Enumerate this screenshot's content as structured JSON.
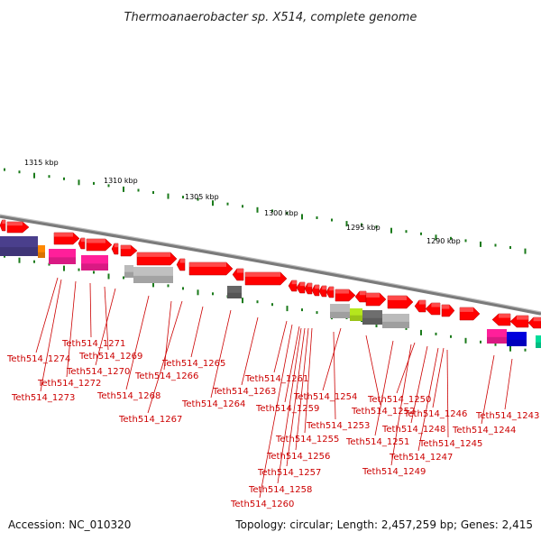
{
  "header": {
    "title": "Thermoanaerobacter sp. X514, complete genome"
  },
  "footer": {
    "accession": "Accession: NC_010320",
    "topology": "Topology: circular; Length: 2,457,259 bp; Genes: 2,415"
  },
  "colors": {
    "forward_gene": "#ff0000",
    "reverse_gene": "#ff0000",
    "backbone": "#888888",
    "tick": "#1a7a1a",
    "label": "#cc0000",
    "leader": "#cc0000"
  },
  "scale_labels": [
    "1315 kbp",
    "1310 kbp",
    "1305 kbp",
    "1300 kbp",
    "1295 kbp",
    "1290 kbp"
  ],
  "gene_labels": [
    "Teth514_1274",
    "Teth514_1271",
    "Teth514_1269",
    "Teth514_1270",
    "Teth514_1272",
    "Teth514_1273",
    "Teth514_1268",
    "Teth514_1266",
    "Teth514_1265",
    "Teth514_1267",
    "Teth514_1264",
    "Teth514_1263",
    "Teth514_1261",
    "Teth514_1259",
    "Teth514_1254",
    "Teth514_1252",
    "Teth514_1253",
    "Teth514_1255",
    "Teth514_1256",
    "Teth514_1257",
    "Teth514_1258",
    "Teth514_1260",
    "Teth514_1250",
    "Teth514_1251",
    "Teth514_1248",
    "Teth514_1246",
    "Teth514_1245",
    "Teth514_1247",
    "Teth514_1249",
    "Teth514_1243",
    "Teth514_1244"
  ]
}
